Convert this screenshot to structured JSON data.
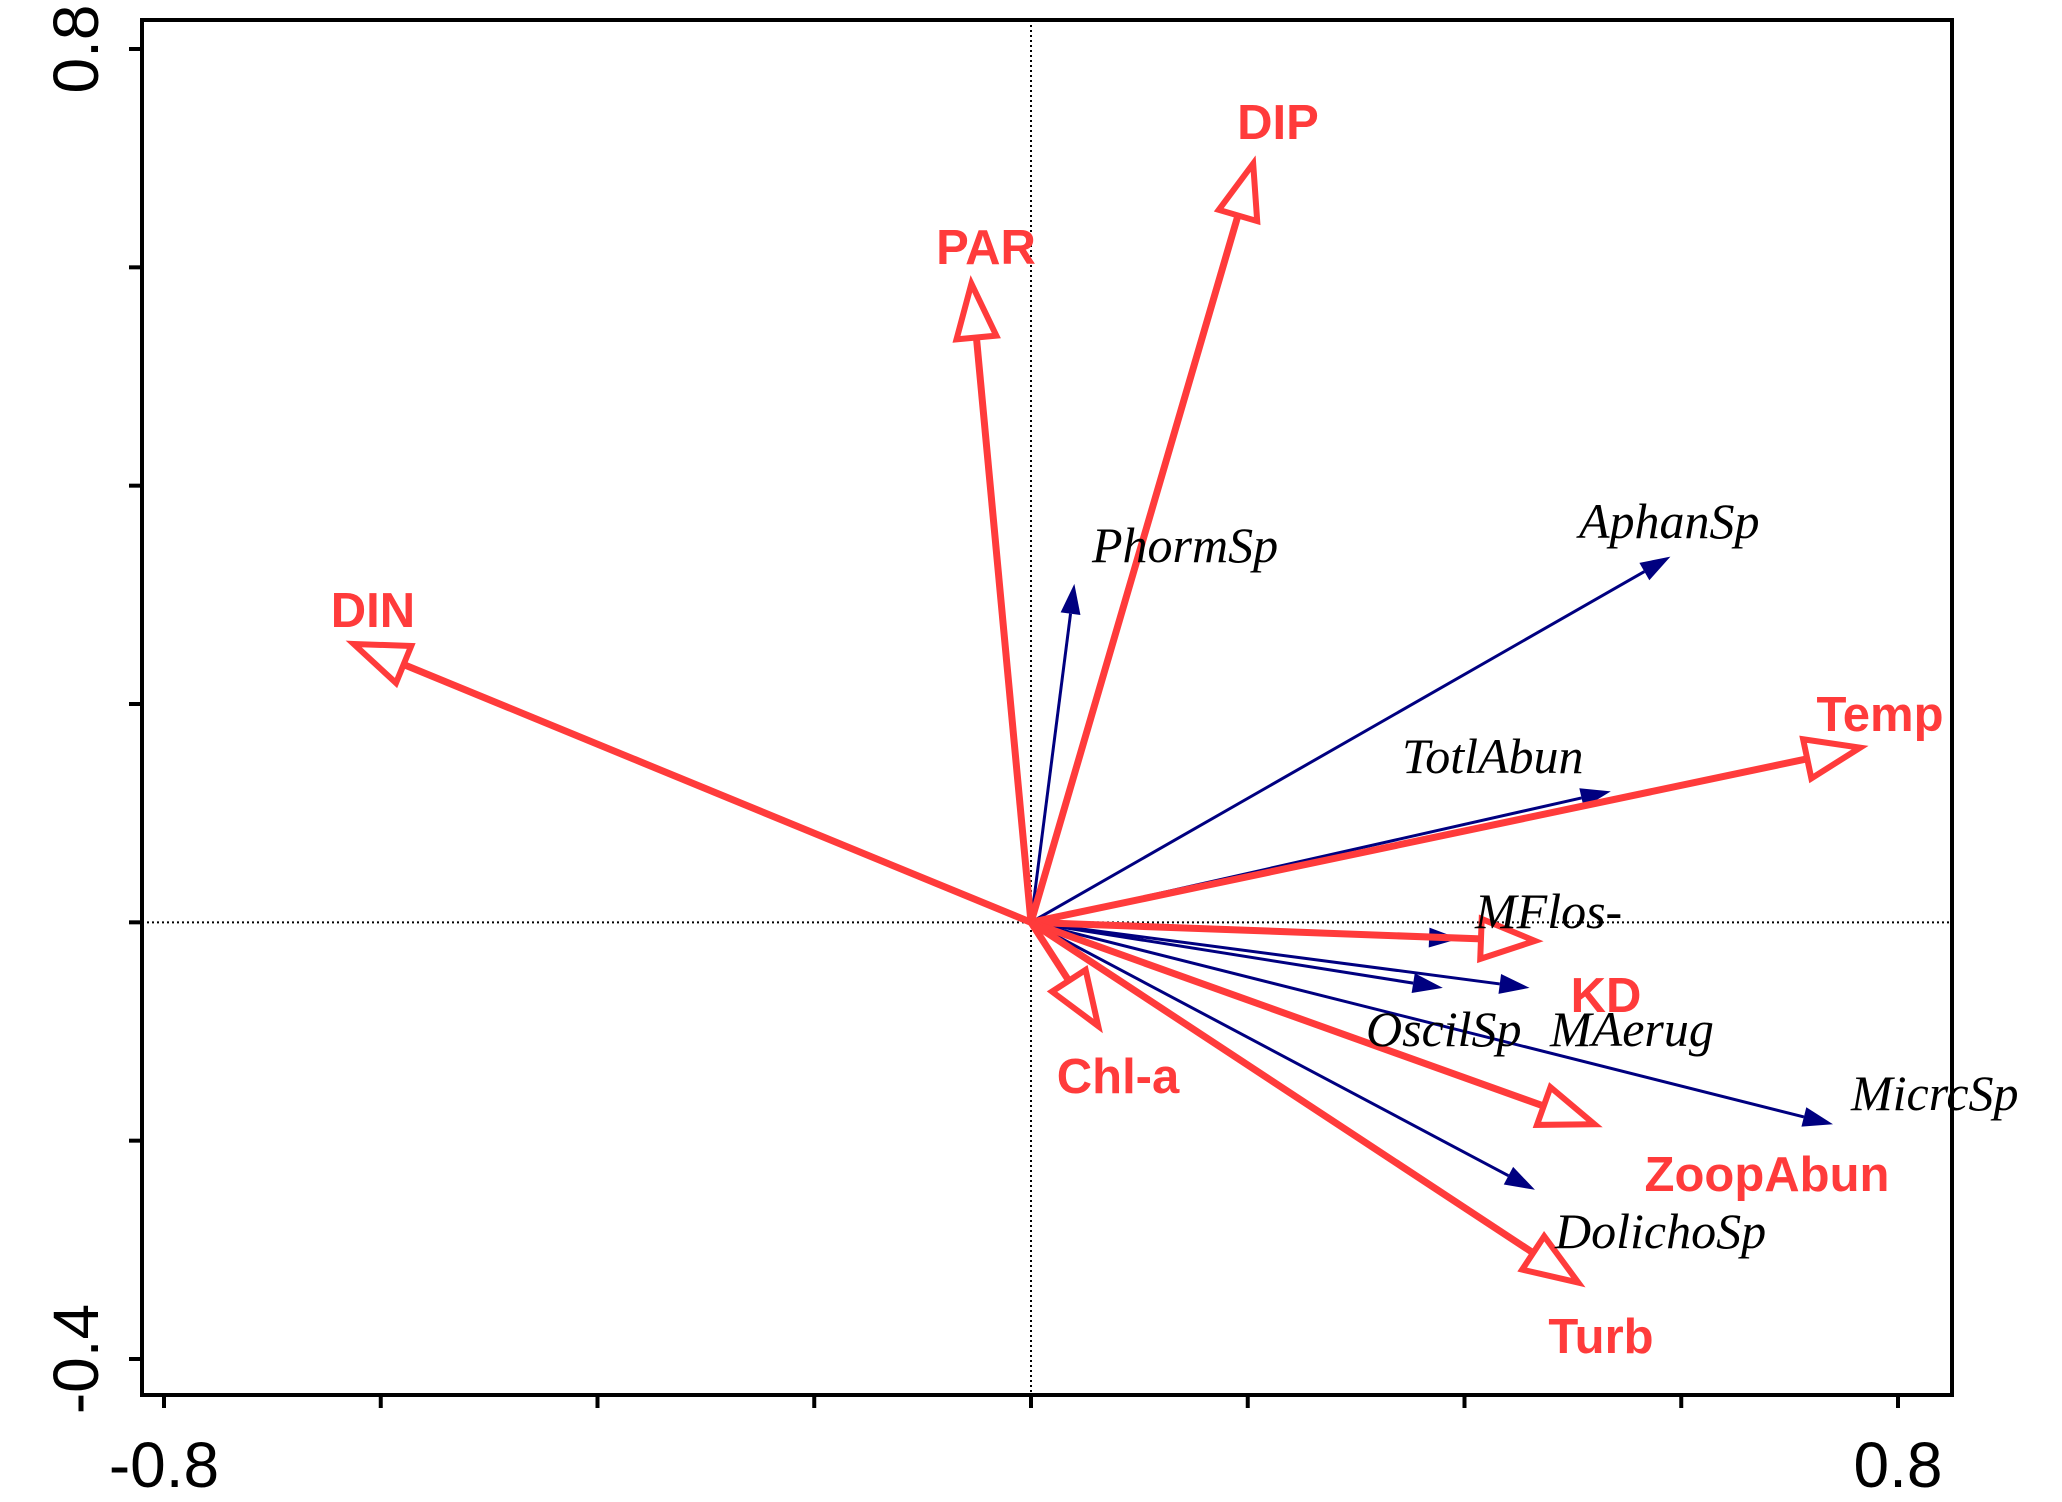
{
  "chart_data": {
    "type": "biplot",
    "title": "",
    "xlabel": "",
    "ylabel": "",
    "xlim": [
      -0.8,
      0.8
    ],
    "ylim": [
      -0.4,
      0.8
    ],
    "x_tick_labels": [
      {
        "value": -0.8,
        "label": "-0.8"
      },
      {
        "value": 0.8,
        "label": "0.8"
      }
    ],
    "y_tick_labels": [
      {
        "value": 0.8,
        "label": "0.8"
      },
      {
        "value": -0.4,
        "label": "-0.4"
      }
    ],
    "x_minor_ticks": [
      -0.8,
      -0.6,
      -0.4,
      -0.2,
      0.0,
      0.2,
      0.4,
      0.6,
      0.8
    ],
    "y_minor_ticks": [
      -0.4,
      -0.2,
      0.0,
      0.2,
      0.4,
      0.6,
      0.8
    ],
    "zero_lines": true,
    "colors": {
      "environmental": "#ff3b3b",
      "species": "#000080",
      "axes": "#000000"
    },
    "environmental_vectors": [
      {
        "label": "DIP",
        "x": 0.205,
        "y": 0.695
      },
      {
        "label": "PAR",
        "x": -0.055,
        "y": 0.585
      },
      {
        "label": "DIN",
        "x": -0.625,
        "y": 0.255
      },
      {
        "label": "Temp",
        "x": 0.765,
        "y": 0.16
      },
      {
        "label": "KD",
        "x": 0.465,
        "y": -0.017
      },
      {
        "label": "Chl-a",
        "x": 0.062,
        "y": -0.095
      },
      {
        "label": "ZoopAbun",
        "x": 0.52,
        "y": -0.185
      },
      {
        "label": "Turb",
        "x": 0.505,
        "y": -0.33
      }
    ],
    "species_vectors": [
      {
        "label": "PhormSp",
        "x": 0.04,
        "y": 0.31
      },
      {
        "label": "AphanSp",
        "x": 0.59,
        "y": 0.335
      },
      {
        "label": "TotlAbun",
        "x": 0.535,
        "y": 0.12
      },
      {
        "label": "MFlos-",
        "x": 0.395,
        "y": -0.015
      },
      {
        "label": "OscilSp",
        "x": 0.38,
        "y": -0.06
      },
      {
        "label": "MAerug",
        "x": 0.46,
        "y": -0.06
      },
      {
        "label": "MicrcSp",
        "x": 0.74,
        "y": -0.185
      },
      {
        "label": "DolichoSp",
        "x": 0.465,
        "y": -0.245
      }
    ]
  }
}
